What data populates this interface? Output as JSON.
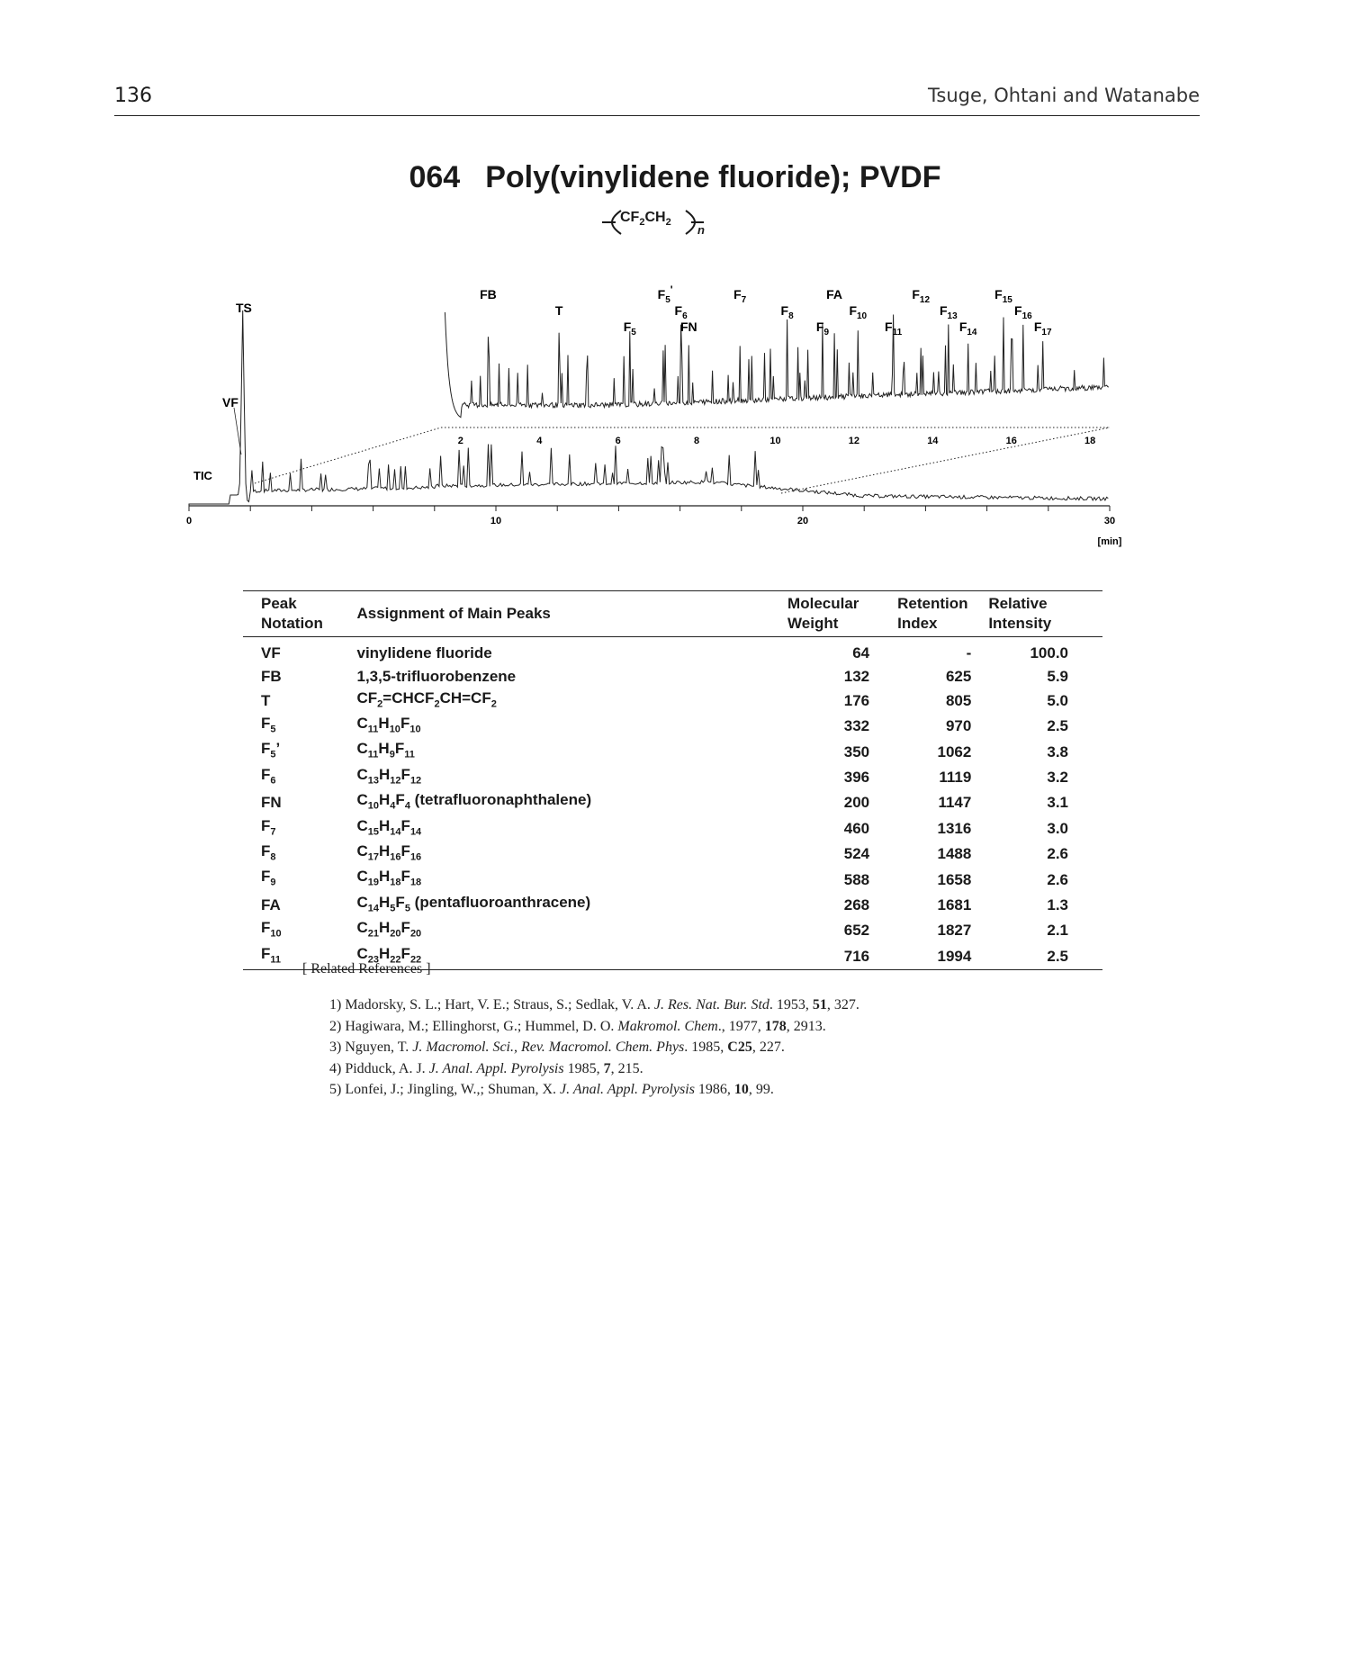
{
  "header": {
    "page_number": "136",
    "running_head": "Tsuge, Ohtani and Watanabe"
  },
  "title": {
    "number": "064",
    "name": "Poly(vinylidene fluoride); PVDF"
  },
  "formula": {
    "unit_c": "CF",
    "unit_c_sub": "2",
    "unit_h": "CH",
    "unit_h_sub": "2",
    "repeat": "n"
  },
  "chart_data": {
    "type": "line",
    "title": "",
    "xlabel": "[min]",
    "ylabel": "",
    "xlim": [
      0,
      30
    ],
    "x_ticks": [
      "0",
      "10",
      "20",
      "30"
    ],
    "trace_label": "TIC",
    "peak_labels_main": [
      "TS",
      "VF"
    ],
    "inset": {
      "xlim": [
        1.5,
        18.5
      ],
      "x_ticks": [
        "2",
        "4",
        "6",
        "8",
        "10",
        "12",
        "14",
        "16",
        "18"
      ],
      "peaks": [
        {
          "base": "FB",
          "sub": "",
          "sup": "",
          "x": 2.7
        },
        {
          "base": "T",
          "sub": "",
          "sup": "",
          "x": 4.5
        },
        {
          "base": "F",
          "sub": "5",
          "sup": "",
          "x": 6.3
        },
        {
          "base": "F",
          "sub": "5",
          "sup": "'",
          "x": 7.2
        },
        {
          "base": "F",
          "sub": "6",
          "sup": "",
          "x": 7.6
        },
        {
          "base": "FN",
          "sub": "",
          "sup": "",
          "x": 7.8
        },
        {
          "base": "F",
          "sub": "7",
          "sup": "",
          "x": 9.1
        },
        {
          "base": "F",
          "sub": "8",
          "sup": "",
          "x": 10.3
        },
        {
          "base": "F",
          "sub": "9",
          "sup": "",
          "x": 11.2
        },
        {
          "base": "FA",
          "sub": "",
          "sup": "",
          "x": 11.5
        },
        {
          "base": "F",
          "sub": "10",
          "sup": "",
          "x": 12.1
        },
        {
          "base": "F",
          "sub": "11",
          "sup": "",
          "x": 13.0
        },
        {
          "base": "F",
          "sub": "12",
          "sup": "",
          "x": 13.7
        },
        {
          "base": "F",
          "sub": "13",
          "sup": "",
          "x": 14.4
        },
        {
          "base": "F",
          "sub": "14",
          "sup": "",
          "x": 14.9
        },
        {
          "base": "F",
          "sub": "15",
          "sup": "",
          "x": 15.8
        },
        {
          "base": "F",
          "sub": "16",
          "sup": "",
          "x": 16.3
        },
        {
          "base": "F",
          "sub": "17",
          "sup": "",
          "x": 16.8
        }
      ]
    }
  },
  "table": {
    "headers": [
      [
        "Peak",
        "Notation"
      ],
      [
        "Assignment of Main Peaks"
      ],
      [
        "Molecular",
        "Weight"
      ],
      [
        "Retention",
        "Index"
      ],
      [
        "Relative",
        "Intensity"
      ]
    ],
    "rows": [
      {
        "n": "VF",
        "ns": "",
        "np": "",
        "a": [
          [
            "vinylidene fluoride",
            ""
          ]
        ],
        "mw": "64",
        "ri": "-",
        "int": "100.0"
      },
      {
        "n": "FB",
        "ns": "",
        "np": "",
        "a": [
          [
            "1,3,5-trifluorobenzene",
            ""
          ]
        ],
        "mw": "132",
        "ri": "625",
        "int": "5.9"
      },
      {
        "n": "T",
        "ns": "",
        "np": "",
        "a": [
          [
            "CF",
            "2"
          ],
          [
            "=CHCF",
            "2"
          ],
          [
            "CH=CF",
            "2"
          ]
        ],
        "mw": "176",
        "ri": "805",
        "int": "5.0"
      },
      {
        "n": "F",
        "ns": "5",
        "np": "",
        "a": [
          [
            "C",
            "11"
          ],
          [
            "H",
            "10"
          ],
          [
            "F",
            "10"
          ]
        ],
        "mw": "332",
        "ri": "970",
        "int": "2.5"
      },
      {
        "n": "F",
        "ns": "5",
        "np": "’",
        "a": [
          [
            "C",
            "11"
          ],
          [
            "H",
            "9"
          ],
          [
            "F",
            "11"
          ]
        ],
        "mw": "350",
        "ri": "1062",
        "int": "3.8"
      },
      {
        "n": "F",
        "ns": "6",
        "np": "",
        "a": [
          [
            "C",
            "13"
          ],
          [
            "H",
            "12"
          ],
          [
            "F",
            "12"
          ]
        ],
        "mw": "396",
        "ri": "1119",
        "int": "3.2"
      },
      {
        "n": "FN",
        "ns": "",
        "np": "",
        "a": [
          [
            "C",
            "10"
          ],
          [
            "H",
            "4"
          ],
          [
            "F",
            "4"
          ],
          [
            " (tetrafluoronaphthalene)",
            ""
          ]
        ],
        "mw": "200",
        "ri": "1147",
        "int": "3.1"
      },
      {
        "n": "F",
        "ns": "7",
        "np": "",
        "a": [
          [
            "C",
            "15"
          ],
          [
            "H",
            "14"
          ],
          [
            "F",
            "14"
          ]
        ],
        "mw": "460",
        "ri": "1316",
        "int": "3.0"
      },
      {
        "n": "F",
        "ns": "8",
        "np": "",
        "a": [
          [
            "C",
            "17"
          ],
          [
            "H",
            "16"
          ],
          [
            "F",
            "16"
          ]
        ],
        "mw": "524",
        "ri": "1488",
        "int": "2.6"
      },
      {
        "n": "F",
        "ns": "9",
        "np": "",
        "a": [
          [
            "C",
            "19"
          ],
          [
            "H",
            "18"
          ],
          [
            "F",
            "18"
          ]
        ],
        "mw": "588",
        "ri": "1658",
        "int": "2.6"
      },
      {
        "n": "FA",
        "ns": "",
        "np": "",
        "a": [
          [
            "C",
            "14"
          ],
          [
            "H",
            "5"
          ],
          [
            "F",
            "5"
          ],
          [
            " (pentafluoroanthracene)",
            ""
          ]
        ],
        "mw": "268",
        "ri": "1681",
        "int": "1.3"
      },
      {
        "n": "F",
        "ns": "10",
        "np": "",
        "a": [
          [
            "C",
            "21"
          ],
          [
            "H",
            "20"
          ],
          [
            "F",
            "20"
          ]
        ],
        "mw": "652",
        "ri": "1827",
        "int": "2.1"
      },
      {
        "n": "F",
        "ns": "11",
        "np": "",
        "a": [
          [
            "C",
            "23"
          ],
          [
            "H",
            "22"
          ],
          [
            "F",
            "22"
          ]
        ],
        "mw": "716",
        "ri": "1994",
        "int": "2.5"
      }
    ]
  },
  "references": {
    "title": "[ Related References ]",
    "items": [
      [
        [
          "1) Madorsky, S. L.; Hart, V. E.; Straus, S.; Sedlak, V. A. ",
          ""
        ],
        [
          "J. Res. Nat. Bur. Std",
          "i"
        ],
        [
          ". 1953, ",
          ""
        ],
        [
          "51",
          "b"
        ],
        [
          ", 327.",
          ""
        ]
      ],
      [
        [
          "2) Hagiwara, M.; Ellinghorst, G.; Hummel, D. O. ",
          ""
        ],
        [
          "Makromol. Chem",
          "i"
        ],
        [
          "., 1977, ",
          ""
        ],
        [
          "178",
          "b"
        ],
        [
          ", 2913.",
          ""
        ]
      ],
      [
        [
          "3) Nguyen, T. ",
          ""
        ],
        [
          "J. Macromol. Sci., Rev. Macromol. Chem. Phys",
          "i"
        ],
        [
          ". 1985, ",
          ""
        ],
        [
          "C25",
          "b"
        ],
        [
          ", 227.",
          ""
        ]
      ],
      [
        [
          "4) Pidduck, A. J. ",
          ""
        ],
        [
          "J. Anal. Appl. Pyrolysis",
          "i"
        ],
        [
          " 1985, ",
          ""
        ],
        [
          "7",
          "b"
        ],
        [
          ", 215.",
          ""
        ]
      ],
      [
        [
          "5) Lonfei, J.; Jingling, W.,; Shuman, X. ",
          ""
        ],
        [
          "J. Anal. Appl. Pyrolysis",
          "i"
        ],
        [
          " 1986, ",
          ""
        ],
        [
          "10",
          "b"
        ],
        [
          ", 99.",
          ""
        ]
      ]
    ]
  }
}
